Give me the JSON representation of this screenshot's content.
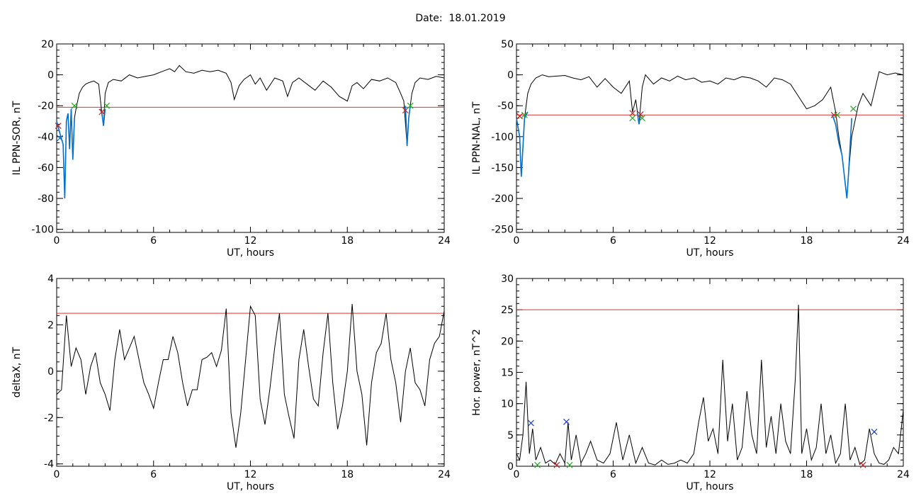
{
  "page_title": "Date:  18.01.2019",
  "chart_data": [
    {
      "type": "line",
      "ylabel": "IL PPN-SOR, nT",
      "xlabel": "UT, hours",
      "xlim": [
        0,
        24
      ],
      "ylim": [
        -102,
        20
      ],
      "xticks": [
        "0",
        "6",
        "12",
        "18",
        "24"
      ],
      "yticks": [
        "20",
        "0",
        "-20",
        "-40",
        "-60",
        "-80",
        "-100"
      ],
      "threshold": -21,
      "series": [
        {
          "color": "#000000",
          "x": [
            0,
            0.2,
            0.4,
            0.5,
            0.6,
            0.7,
            0.8,
            0.9,
            1.0,
            1.1,
            1.2,
            1.4,
            1.6,
            1.8,
            2.0,
            2.3,
            2.6,
            2.8,
            2.9,
            3.0,
            3.2,
            3.5,
            4.0,
            4.5,
            5.0,
            5.5,
            6.0,
            6.5,
            7.0,
            7.3,
            7.6,
            8.0,
            8.5,
            9.0,
            9.5,
            10.0,
            10.5,
            10.8,
            11.0,
            11.3,
            11.6,
            12.0,
            12.3,
            12.6,
            13.0,
            13.5,
            14.0,
            14.3,
            14.6,
            15.0,
            15.5,
            16.0,
            16.5,
            17.0,
            17.5,
            18.0,
            18.3,
            18.6,
            19.0,
            19.5,
            20.0,
            20.5,
            21.0,
            21.3,
            21.5,
            21.7,
            21.8,
            21.9,
            22.0,
            22.2,
            22.5,
            23.0,
            23.5,
            24.0
          ],
          "y": [
            -30,
            -38,
            -45,
            -80,
            -30,
            -25,
            -48,
            -22,
            -55,
            -28,
            -22,
            -12,
            -8,
            -6,
            -5,
            -4,
            -6,
            -25,
            -33,
            -12,
            -5,
            -3,
            -4,
            0,
            -2,
            -1,
            0,
            2,
            4,
            2,
            6,
            2,
            1,
            3,
            2,
            3,
            1,
            -5,
            -16,
            -7,
            -3,
            0,
            -6,
            -2,
            -10,
            -2,
            -4,
            -14,
            -5,
            -2,
            -6,
            -10,
            -4,
            -8,
            -14,
            -17,
            -7,
            -5,
            -9,
            -3,
            -4,
            -2,
            -5,
            -12,
            -17,
            -46,
            -28,
            -20,
            -12,
            -5,
            -2,
            -3,
            -1,
            -2
          ]
        },
        {
          "color": "#0070d0",
          "x": [
            0,
            0.2,
            0.4,
            0.5,
            0.6,
            0.7,
            0.8,
            0.9,
            1.0,
            1.1
          ],
          "y": [
            -30,
            -38,
            -45,
            -80,
            -30,
            -25,
            -48,
            -22,
            -55,
            -28
          ]
        },
        {
          "color": "#0070d0",
          "x": [
            2.7,
            2.8,
            2.9,
            3.0
          ],
          "y": [
            -22,
            -25,
            -33,
            -22
          ]
        },
        {
          "color": "#0070d0",
          "x": [
            21.6,
            21.7,
            21.8,
            21.9
          ],
          "y": [
            -20,
            -46,
            -28,
            -20
          ]
        }
      ],
      "markers": [
        {
          "color": "#cc2222",
          "x": 0.1,
          "y": -33
        },
        {
          "color": "#cc2222",
          "x": 2.8,
          "y": -24
        },
        {
          "color": "#cc2222",
          "x": 21.6,
          "y": -23
        },
        {
          "color": "#22aa22",
          "x": 1.1,
          "y": -20
        },
        {
          "color": "#22aa22",
          "x": 3.1,
          "y": -20
        },
        {
          "color": "#22aa22",
          "x": 21.9,
          "y": -20
        },
        {
          "color": "#0070d0",
          "x": 0.2,
          "y": -41
        }
      ]
    },
    {
      "type": "line",
      "ylabel": "IL PPN-NAL, nT",
      "xlabel": "UT, hours",
      "xlim": [
        0,
        24
      ],
      "ylim": [
        -255,
        50
      ],
      "xticks": [
        "0",
        "6",
        "12",
        "18",
        "24"
      ],
      "yticks": [
        "50",
        "0",
        "-50",
        "-100",
        "-150",
        "-200",
        "-250"
      ],
      "threshold": -65,
      "series": [
        {
          "color": "#000000",
          "x": [
            0,
            0.2,
            0.3,
            0.5,
            0.7,
            0.9,
            1.2,
            1.6,
            2.0,
            2.5,
            3.0,
            3.5,
            4.0,
            4.5,
            5.0,
            5.5,
            6.0,
            6.5,
            7.0,
            7.2,
            7.4,
            7.6,
            7.8,
            8.0,
            8.5,
            9.0,
            9.5,
            10.0,
            10.5,
            11.0,
            11.5,
            12.0,
            12.5,
            13.0,
            13.5,
            14.0,
            14.5,
            15.0,
            15.5,
            16.0,
            16.5,
            17.0,
            17.5,
            18.0,
            18.5,
            19.0,
            19.5,
            19.8,
            20.0,
            20.2,
            20.5,
            20.6,
            20.8,
            21.0,
            21.2,
            21.5,
            22.0,
            22.5,
            23.0,
            23.5,
            24.0
          ],
          "y": [
            -70,
            -100,
            -165,
            -70,
            -30,
            -15,
            -5,
            0,
            -3,
            -2,
            -1,
            -5,
            -8,
            -3,
            -20,
            -6,
            -20,
            -30,
            -10,
            -60,
            -40,
            -80,
            -20,
            0,
            -15,
            -5,
            -10,
            -2,
            -8,
            -5,
            -12,
            -10,
            -15,
            -5,
            -8,
            -3,
            -5,
            -10,
            -20,
            -5,
            -8,
            -15,
            -35,
            -55,
            -50,
            -40,
            -20,
            -60,
            -100,
            -130,
            -200,
            -160,
            -100,
            -75,
            -50,
            -30,
            -50,
            5,
            0,
            3,
            0
          ]
        },
        {
          "color": "#0070d0",
          "x": [
            0,
            0.2,
            0.3,
            0.5,
            0.7
          ],
          "y": [
            -70,
            -100,
            -165,
            -70,
            -60
          ]
        },
        {
          "color": "#0070d0",
          "x": [
            7.5,
            7.6,
            7.7
          ],
          "y": [
            -60,
            -80,
            -65
          ]
        },
        {
          "color": "#0070d0",
          "x": [
            19.6,
            19.8,
            20.0,
            20.2,
            20.5,
            20.6,
            20.8
          ],
          "y": [
            -65,
            -80,
            -110,
            -130,
            -200,
            -160,
            -70
          ]
        }
      ],
      "markers": [
        {
          "color": "#cc2222",
          "x": 0.2,
          "y": -67
        },
        {
          "color": "#cc2222",
          "x": 7.2,
          "y": -62
        },
        {
          "color": "#cc2222",
          "x": 7.7,
          "y": -64
        },
        {
          "color": "#cc2222",
          "x": 19.7,
          "y": -65
        },
        {
          "color": "#22aa22",
          "x": 0.5,
          "y": -65
        },
        {
          "color": "#22aa22",
          "x": 7.2,
          "y": -70
        },
        {
          "color": "#22aa22",
          "x": 7.8,
          "y": -70
        },
        {
          "color": "#22aa22",
          "x": 19.9,
          "y": -65
        },
        {
          "color": "#22aa22",
          "x": 20.9,
          "y": -55
        }
      ]
    },
    {
      "type": "line",
      "ylabel": "deltaX, nT",
      "xlabel": "UT, hours",
      "xlim": [
        0,
        24
      ],
      "ylim": [
        -4.1,
        4
      ],
      "xticks": [
        "0",
        "6",
        "12",
        "18",
        "24"
      ],
      "yticks": [
        "4",
        "2",
        "0",
        "-2",
        "-4"
      ],
      "threshold": 2.5,
      "series": [
        {
          "color": "#000000",
          "x": [
            0,
            0.3,
            0.6,
            0.9,
            1.2,
            1.5,
            1.8,
            2.1,
            2.4,
            2.7,
            3.0,
            3.3,
            3.6,
            3.9,
            4.2,
            4.5,
            4.8,
            5.1,
            5.4,
            5.7,
            6.0,
            6.3,
            6.6,
            6.9,
            7.2,
            7.5,
            7.8,
            8.1,
            8.4,
            8.7,
            9.0,
            9.3,
            9.6,
            9.9,
            10.2,
            10.5,
            10.8,
            11.1,
            11.4,
            11.7,
            12.0,
            12.3,
            12.6,
            12.9,
            13.2,
            13.5,
            13.8,
            14.1,
            14.4,
            14.7,
            15.0,
            15.3,
            15.6,
            15.9,
            16.2,
            16.5,
            16.8,
            17.1,
            17.4,
            17.7,
            18.0,
            18.3,
            18.6,
            18.9,
            19.2,
            19.5,
            19.8,
            20.1,
            20.4,
            20.7,
            21.0,
            21.3,
            21.6,
            21.9,
            22.2,
            22.5,
            22.8,
            23.1,
            23.4,
            23.7,
            24.0
          ],
          "y": [
            -1,
            -0.8,
            2.4,
            0.2,
            1,
            0.5,
            -1,
            0.2,
            0.8,
            -0.5,
            -1,
            -1.7,
            0.5,
            1.8,
            0.5,
            1,
            1.5,
            0.5,
            -0.5,
            -1,
            -1.6,
            -0.5,
            0.5,
            0.5,
            1.5,
            0.8,
            -0.5,
            -1.5,
            -0.8,
            -0.8,
            0.5,
            0.6,
            0.8,
            0.2,
            0.9,
            2.7,
            -1.8,
            -3.3,
            -1.8,
            0.5,
            2.8,
            2.4,
            -1.2,
            -2.3,
            -0.8,
            1,
            2.5,
            -1,
            -2,
            -2.9,
            0.5,
            1.8,
            0.2,
            -1.2,
            -1.5,
            0.8,
            2.5,
            -0.5,
            -2.5,
            -1.5,
            0,
            2.9,
            0,
            -1,
            -3.2,
            -0.5,
            0.8,
            1.2,
            2.5,
            0.5,
            -0.5,
            -2.2,
            0,
            1,
            -0.5,
            -0.8,
            -1.5,
            0.5,
            1.2,
            1.5,
            2.6
          ]
        }
      ],
      "markers": []
    },
    {
      "type": "line",
      "ylabel": "Hor. power, nT^2",
      "xlabel": "UT, hours",
      "xlim": [
        0,
        24
      ],
      "ylim": [
        0,
        30
      ],
      "xticks": [
        "0",
        "6",
        "12",
        "18",
        "24"
      ],
      "yticks": [
        "30",
        "25",
        "20",
        "15",
        "10",
        "5",
        "0"
      ],
      "threshold": 25,
      "series": [
        {
          "color": "#000000",
          "x": [
            0,
            0.2,
            0.4,
            0.6,
            0.8,
            1.0,
            1.2,
            1.5,
            1.8,
            2.1,
            2.4,
            2.7,
            3.0,
            3.2,
            3.4,
            3.7,
            4.0,
            4.3,
            4.6,
            5.0,
            5.4,
            5.8,
            6.2,
            6.6,
            7.0,
            7.4,
            7.8,
            8.2,
            8.6,
            9.0,
            9.4,
            9.8,
            10.2,
            10.6,
            11.0,
            11.3,
            11.6,
            11.9,
            12.2,
            12.5,
            12.8,
            13.1,
            13.4,
            13.7,
            14.0,
            14.3,
            14.6,
            14.9,
            15.2,
            15.5,
            15.8,
            16.1,
            16.4,
            16.7,
            17.0,
            17.3,
            17.5,
            17.7,
            18.0,
            18.3,
            18.6,
            18.9,
            19.2,
            19.5,
            19.8,
            20.1,
            20.4,
            20.7,
            21.0,
            21.3,
            21.6,
            21.9,
            22.2,
            22.5,
            22.8,
            23.1,
            23.4,
            23.7,
            24.0
          ],
          "y": [
            2,
            1,
            5,
            13.5,
            2,
            6,
            1,
            3,
            0.5,
            1,
            0.3,
            2,
            0.5,
            7,
            1,
            5,
            0.5,
            2,
            4,
            1,
            0.5,
            2,
            7,
            1,
            5,
            0.5,
            3,
            0.5,
            0.2,
            1,
            0.3,
            0.5,
            1,
            0.5,
            2,
            7,
            11,
            4,
            6,
            2,
            17,
            4,
            10,
            1,
            3,
            12,
            5,
            2,
            17,
            3,
            8,
            2,
            10,
            4,
            2,
            14,
            25.8,
            2,
            6,
            1,
            3,
            10,
            2,
            5,
            0.5,
            2,
            10,
            1,
            3,
            0.3,
            1,
            6,
            2,
            0.5,
            0.3,
            1,
            3,
            2,
            9
          ]
        }
      ],
      "markers": [
        {
          "color": "#1f3fbf",
          "x": 0.9,
          "y": 6.9
        },
        {
          "color": "#1f3fbf",
          "x": 3.1,
          "y": 7.1
        },
        {
          "color": "#1f3fbf",
          "x": 22.2,
          "y": 5.5
        },
        {
          "color": "#22aa22",
          "x": 1.3,
          "y": 0.2
        },
        {
          "color": "#22aa22",
          "x": 3.3,
          "y": 0.2
        },
        {
          "color": "#cc2222",
          "x": 2.5,
          "y": 0.2
        },
        {
          "color": "#cc2222",
          "x": 21.5,
          "y": 0.2
        }
      ]
    }
  ]
}
